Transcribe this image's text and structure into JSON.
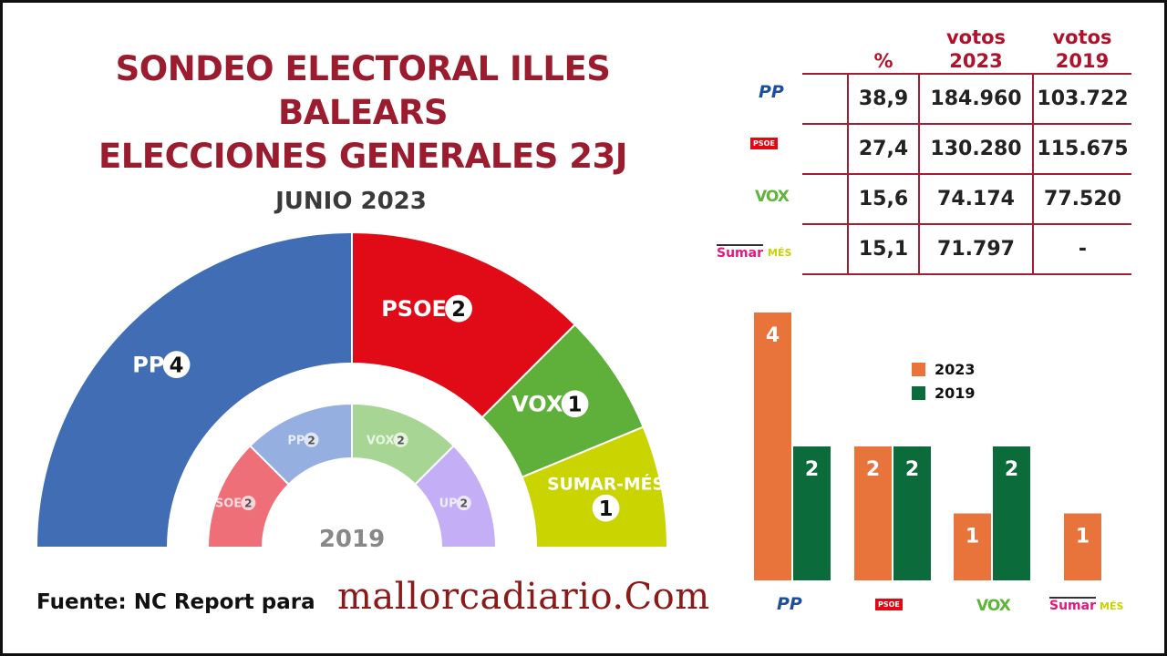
{
  "title_line1": "SONDEO ELECTORAL ILLES BALEARS",
  "title_line2": "ELECCIONES GENERALES 23J",
  "source": "Fuente: NC Report para",
  "brand": "mallorcadiario.Com",
  "table": {
    "headers": [
      "%",
      "votos 2023",
      "votos 2019"
    ],
    "rows": [
      {
        "party": "PP",
        "pct": "38,9",
        "votes_2023": "184.960",
        "votes_2019": "103.722"
      },
      {
        "party": "PSOE",
        "pct": "27,4",
        "votes_2023": "130.280",
        "votes_2019": "115.675"
      },
      {
        "party": "VOX",
        "pct": "15,6",
        "votes_2023": "74.174",
        "votes_2019": "77.520"
      },
      {
        "party": "Sumar MÉS",
        "pct": "15,1",
        "votes_2023": "71.797",
        "votes_2019": "-"
      }
    ]
  },
  "logos": {
    "pp": "PP",
    "psoe": "PSOE",
    "vox": "VOX",
    "sumar": "Sumar",
    "mes": "MÉS"
  },
  "chart_data": [
    {
      "type": "pie",
      "subtype": "semicircle-parliament",
      "title": "JUNIO 2023",
      "series": [
        {
          "label": "PP",
          "seats": 4,
          "color": "#416db5"
        },
        {
          "label": "PSOE",
          "seats": 2,
          "color": "#e10a17"
        },
        {
          "label": "VOX",
          "seats": 1,
          "color": "#5fb03a"
        },
        {
          "label": "SUMAR-MÉS",
          "seats": 1,
          "color": "#c9d400"
        }
      ]
    },
    {
      "type": "pie",
      "subtype": "semicircle-parliament",
      "title": "2019",
      "series": [
        {
          "label": "PSOE",
          "seats": 2,
          "color": "#ef6f79"
        },
        {
          "label": "PP",
          "seats": 2,
          "color": "#95b0e0"
        },
        {
          "label": "VOX",
          "seats": 2,
          "color": "#a7d593"
        },
        {
          "label": "UP",
          "seats": 2,
          "color": "#c4aef5"
        }
      ]
    },
    {
      "type": "bar",
      "categories": [
        "PP",
        "PSOE",
        "VOX",
        "Sumar MÉS"
      ],
      "series": [
        {
          "name": "2023",
          "values": [
            4,
            2,
            1,
            1
          ],
          "color": "#e8743b"
        },
        {
          "name": "2019",
          "values": [
            2,
            2,
            2,
            null
          ],
          "color": "#0b6b3a"
        }
      ],
      "ylim": [
        0,
        4
      ],
      "legend": "top-center",
      "grid": false
    }
  ]
}
